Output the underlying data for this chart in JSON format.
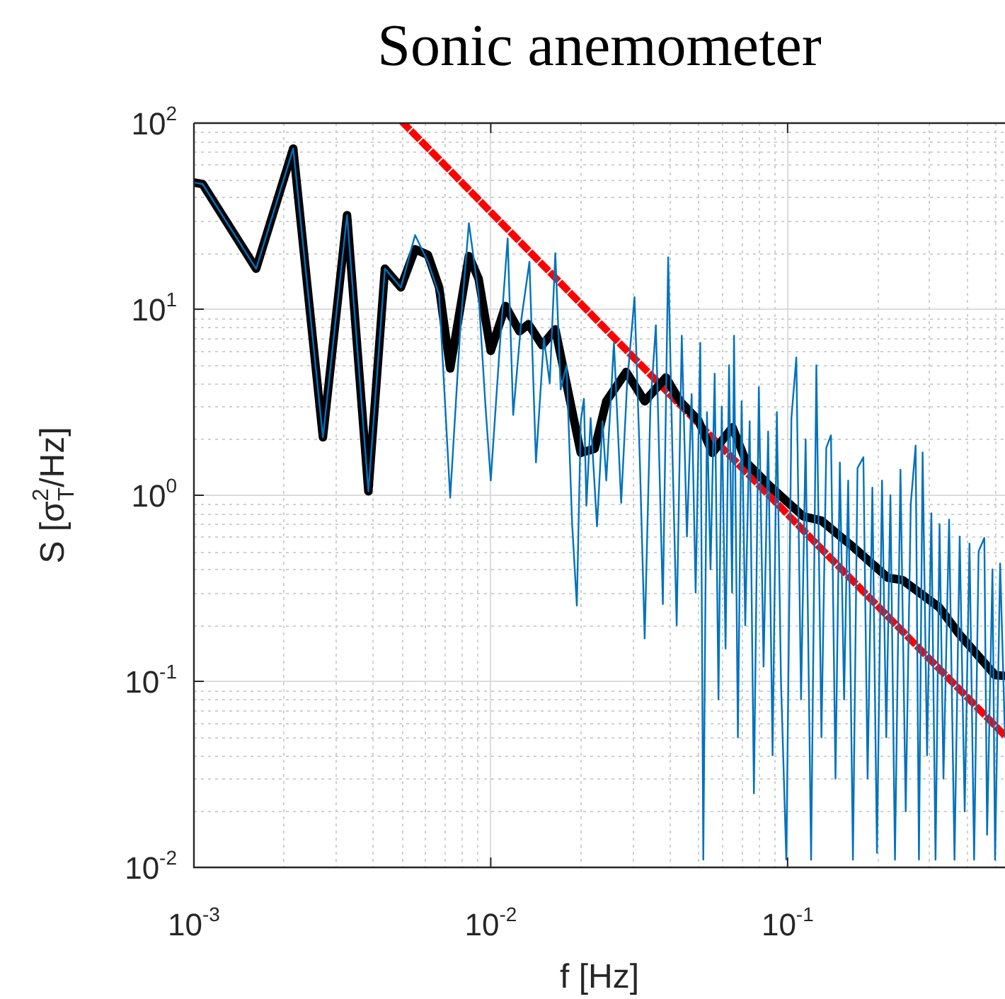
{
  "chart_data": {
    "type": "line",
    "title": "Sonic anemometer",
    "xlabel": "f [Hz]",
    "ylabel": "S [σ$^{2}$$_{T}$/Hz]",
    "log": "xy",
    "grid": true,
    "marker": "none",
    "legend": false,
    "xlim": [
      0.001,
      0.54
    ],
    "xticks": [
      {
        "value": 0.001,
        "label": "10$^{-3}$"
      },
      {
        "value": 0.01,
        "label": "10$^{-2}$"
      },
      {
        "value": 0.1,
        "label": "10$^{-1}$"
      }
    ],
    "ylim": [
      0.01,
      100
    ],
    "yticks": [
      {
        "value": 0.01,
        "label": "10$^{-2}$"
      },
      {
        "value": 0.1,
        "label": "10$^{-1}$"
      },
      {
        "value": 1,
        "label": "10$^{0}$"
      },
      {
        "value": 10,
        "label": "10$^{1}$"
      },
      {
        "value": 100,
        "label": "10$^{2}$"
      }
    ],
    "series": [
      {
        "color": "#0072bd",
        "line_style": "solid",
        "x": [
          0.001,
          0.00107,
          0.00162,
          0.00216,
          0.00272,
          0.00328,
          0.00387,
          0.0044,
          0.00498,
          0.00556,
          0.00614,
          0.0067,
          0.0073,
          0.0079,
          0.00844,
          0.0091,
          0.0096,
          0.01,
          0.0107,
          0.0114,
          0.0119,
          0.0127,
          0.0135,
          0.0142,
          0.0151,
          0.0158,
          0.0165,
          0.0172,
          0.018,
          0.0188,
          0.0195,
          0.0201,
          0.0206,
          0.021,
          0.0217,
          0.0228,
          0.0238,
          0.0245,
          0.026,
          0.0275,
          0.0288,
          0.0305,
          0.0318,
          0.033,
          0.0345,
          0.036,
          0.038,
          0.0396,
          0.041,
          0.0423,
          0.044,
          0.0458,
          0.0475,
          0.049,
          0.0508,
          0.052,
          0.0535,
          0.055,
          0.0568,
          0.0585,
          0.06,
          0.0618,
          0.0635,
          0.065,
          0.066,
          0.068,
          0.07,
          0.072,
          0.0745,
          0.077,
          0.08,
          0.083,
          0.086,
          0.089,
          0.092,
          0.095,
          0.099,
          0.103,
          0.107,
          0.111,
          0.115,
          0.12,
          0.125,
          0.13,
          0.135,
          0.14,
          0.145,
          0.15,
          0.155,
          0.16,
          0.166,
          0.172,
          0.18,
          0.186,
          0.193,
          0.2,
          0.208,
          0.215,
          0.222,
          0.23,
          0.24,
          0.25,
          0.26,
          0.27,
          0.277,
          0.285,
          0.295,
          0.305,
          0.315,
          0.325,
          0.335,
          0.35,
          0.365,
          0.38,
          0.395,
          0.41,
          0.425,
          0.44,
          0.46,
          0.47,
          0.49,
          0.5,
          0.52,
          0.54
        ],
        "values": [
          48,
          47,
          16.5,
          73,
          2.05,
          32,
          1.05,
          16.5,
          13.1,
          25,
          18,
          12,
          0.97,
          8,
          29,
          12,
          3,
          1.2,
          6,
          24,
          2.7,
          9,
          18,
          1.5,
          7,
          4,
          20,
          3.7,
          5,
          0.7,
          0.255,
          2.5,
          3.3,
          0.88,
          2.6,
          0.68,
          2.5,
          1.2,
          6.6,
          0.91,
          4,
          11.6,
          1.5,
          0.17,
          3,
          8.2,
          0.26,
          19,
          1.5,
          0.2,
          7.2,
          0.6,
          3.5,
          0.3,
          6.6,
          0.011,
          2.8,
          0.4,
          4.5,
          0.08,
          3,
          0.15,
          5,
          0.3,
          7.2,
          0.05,
          3.2,
          0.2,
          2.5,
          0.025,
          3.8,
          0.12,
          2.2,
          0.04,
          2.8,
          0.1,
          0.011,
          2.6,
          5.5,
          0.08,
          2,
          0.011,
          5,
          0.05,
          1.8,
          2.1,
          0.03,
          1.5,
          0.08,
          1.2,
          0.011,
          1.4,
          1.6,
          0.03,
          1.1,
          0.012,
          1.2,
          0.05,
          1,
          0.011,
          1.37,
          0.02,
          0.9,
          1.85,
          0.011,
          1.7,
          0.04,
          0.8,
          0.011,
          0.7,
          0.03,
          0.74,
          0.011,
          0.6,
          0.02,
          0.55,
          0.011,
          0.5,
          0.59,
          0.015,
          0.4,
          0.011,
          0.43,
          0.05
        ]
      },
      {
        "color": "#000000",
        "line_style": "solid",
        "x": [
          0.001,
          0.00107,
          0.00162,
          0.00216,
          0.00272,
          0.00328,
          0.00387,
          0.0044,
          0.00498,
          0.00556,
          0.00614,
          0.0067,
          0.0073,
          0.00844,
          0.0091,
          0.01,
          0.0112,
          0.0125,
          0.0134,
          0.0149,
          0.0165,
          0.0201,
          0.0224,
          0.0245,
          0.0286,
          0.033,
          0.0389,
          0.0434,
          0.05,
          0.0558,
          0.0652,
          0.0727,
          0.0866,
          0.113,
          0.13,
          0.168,
          0.218,
          0.244,
          0.324,
          0.378,
          0.39,
          0.5,
          0.54
        ],
        "values": [
          48,
          47,
          16.5,
          73,
          2.05,
          32,
          1.05,
          16.5,
          13.1,
          21,
          19.6,
          13.1,
          4.8,
          19.3,
          14.6,
          5.97,
          10.4,
          7.6,
          8.3,
          6.4,
          7.8,
          1.69,
          1.78,
          3.2,
          4.6,
          3.2,
          4.3,
          3.2,
          2.53,
          1.69,
          2.32,
          1.5,
          1.13,
          0.77,
          0.73,
          0.52,
          0.36,
          0.35,
          0.25,
          0.18,
          0.17,
          0.108,
          0.107
        ]
      },
      {
        "color": "#ff0000",
        "line_style": "dotted",
        "x": [
          0.00508,
          0.54
        ],
        "values": [
          100,
          0.051
        ]
      }
    ]
  }
}
